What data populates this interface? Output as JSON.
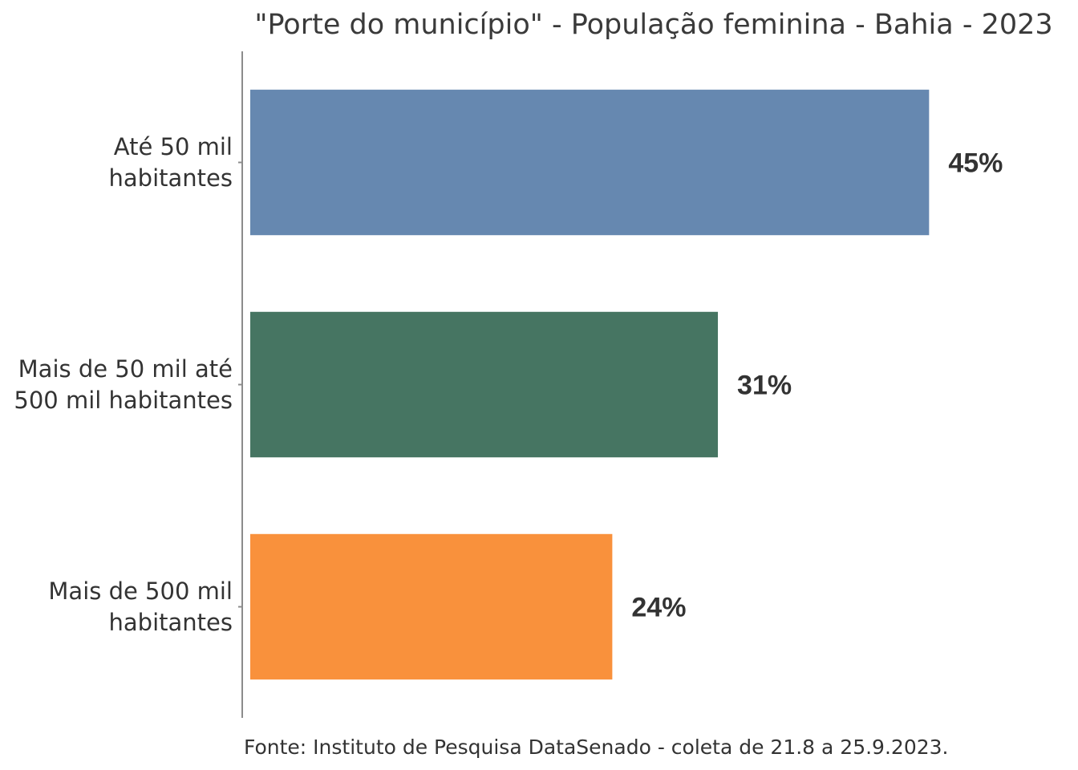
{
  "chart_data": {
    "type": "bar",
    "orientation": "horizontal",
    "title": "\"Porte do município\" - População feminina - Bahia - 2023",
    "categories": [
      [
        "Até 50 mil",
        "habitantes"
      ],
      [
        "Mais de 50 mil até",
        "500 mil habitantes"
      ],
      [
        "Mais de 500 mil",
        "habitantes"
      ]
    ],
    "values": [
      45,
      31,
      24
    ],
    "value_labels": [
      "45%",
      "31%",
      "24%"
    ],
    "colors": [
      "#6688b0",
      "#467562",
      "#f9913c"
    ],
    "xlim": [
      0,
      52
    ],
    "grid": false,
    "legend": "none",
    "source": "Fonte: Instituto de Pesquisa DataSenado - coleta de 21.8 a 25.9.2023."
  }
}
